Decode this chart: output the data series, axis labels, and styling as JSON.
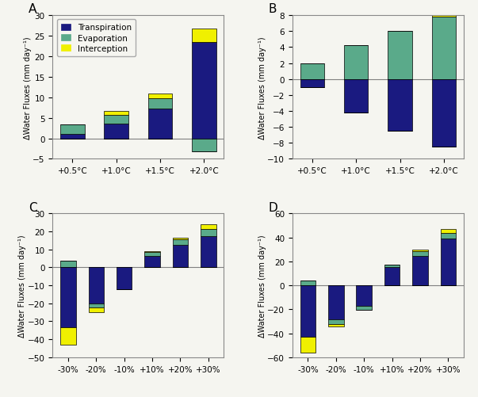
{
  "colors": {
    "transpiration": "#1a1a80",
    "evaporation": "#5aaa8a",
    "interception": "#f0f000"
  },
  "bg_color": "#f5f5f0",
  "panel_A": {
    "label": "A",
    "categories": [
      "+0.5°C",
      "+1.0°C",
      "+1.5°C",
      "+2.0°C"
    ],
    "transpiration": [
      1.0,
      3.5,
      7.2,
      23.5
    ],
    "evaporation": [
      2.3,
      2.2,
      2.5,
      -3.2
    ],
    "interception": [
      0.0,
      1.0,
      1.3,
      3.2
    ],
    "ylim": [
      -5,
      30
    ],
    "yticks": [
      -5,
      0,
      5,
      10,
      15,
      20,
      25,
      30
    ]
  },
  "panel_B": {
    "label": "B",
    "categories": [
      "+0.5°C",
      "+1.0°C",
      "+1.5°C",
      "+2.0°C"
    ],
    "transpiration": [
      -1.0,
      -4.2,
      -6.5,
      -8.5
    ],
    "evaporation": [
      2.0,
      4.2,
      6.0,
      7.8
    ],
    "interception": [
      0.0,
      0.0,
      0.0,
      0.2
    ],
    "ylim": [
      -10,
      8
    ],
    "yticks": [
      -10,
      -8,
      -6,
      -4,
      -2,
      0,
      2,
      4,
      6,
      8
    ]
  },
  "panel_C": {
    "label": "C",
    "categories": [
      "-30%",
      "-20%",
      "-10%",
      "+10%",
      "+20%",
      "+30%"
    ],
    "transpiration": [
      -33.5,
      -20.0,
      -12.0,
      6.5,
      12.5,
      17.5
    ],
    "evaporation": [
      3.5,
      -2.5,
      0.0,
      2.0,
      3.0,
      4.0
    ],
    "interception": [
      -9.5,
      -2.5,
      0.0,
      0.5,
      1.0,
      2.5
    ],
    "ylim": [
      -50,
      30
    ],
    "yticks": [
      -50,
      -40,
      -30,
      -20,
      -10,
      0,
      10,
      20,
      30
    ]
  },
  "panel_D": {
    "label": "D",
    "categories": [
      "-30%",
      "-20%",
      "-10%",
      "+10%",
      "+20%",
      "+30%"
    ],
    "transpiration": [
      -43.0,
      -28.5,
      -17.0,
      15.0,
      24.5,
      39.0
    ],
    "evaporation": [
      4.0,
      -4.0,
      -3.5,
      2.0,
      4.0,
      5.0
    ],
    "interception": [
      -13.0,
      -2.0,
      0.0,
      0.5,
      1.5,
      3.0
    ],
    "ylim": [
      -60,
      60
    ],
    "yticks": [
      -60,
      -40,
      -20,
      0,
      20,
      40,
      60
    ]
  },
  "ylabel": "ΔWater Fluxes (mm day⁻¹)"
}
